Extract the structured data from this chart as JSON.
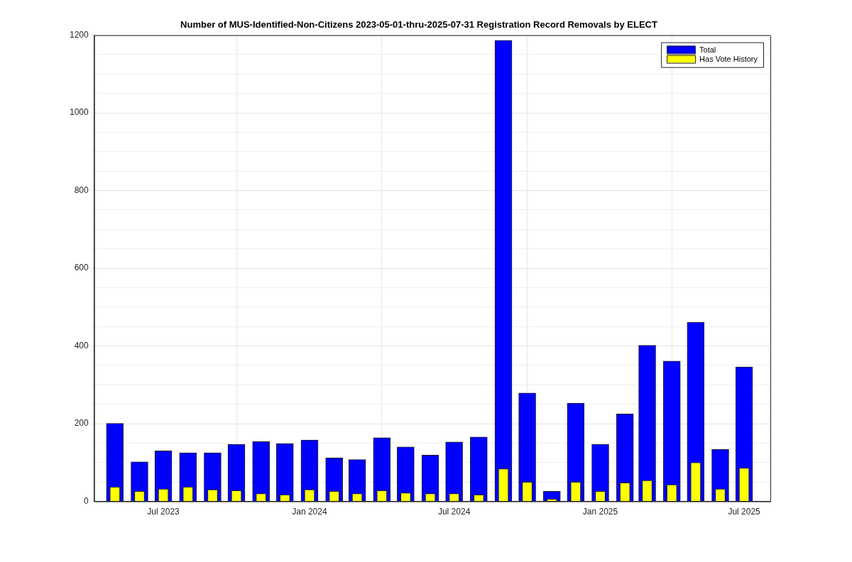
{
  "chart_data": {
    "type": "bar",
    "title": "Number of MUS-Identified-Non-Citizens 2023-05-01-thru-2025-07-31 Registration Record Removals by ELECT",
    "x": [
      "2023-05",
      "2023-06",
      "2023-07",
      "2023-08",
      "2023-09",
      "2023-10",
      "2023-11",
      "2023-12",
      "2024-01",
      "2024-02",
      "2024-03",
      "2024-04",
      "2024-05",
      "2024-06",
      "2024-07",
      "2024-08",
      "2024-09",
      "2024-10",
      "2024-11",
      "2024-12",
      "2025-01",
      "2025-02",
      "2025-03",
      "2025-04",
      "2025-05",
      "2025-06",
      "2025-07"
    ],
    "series": [
      {
        "name": "Total",
        "color": "#0000ff",
        "values": [
          201,
          102,
          130,
          125,
          125,
          147,
          154,
          149,
          158,
          112,
          108,
          164,
          140,
          119,
          153,
          166,
          1187,
          279,
          26,
          253,
          147,
          225,
          402,
          361,
          461,
          134,
          346
        ]
      },
      {
        "name": "Has Vote History",
        "color": "#ffff00",
        "values": [
          37,
          26,
          32,
          37,
          30,
          28,
          20,
          17,
          30,
          26,
          20,
          28,
          22,
          20,
          20,
          17,
          84,
          50,
          6,
          50,
          26,
          48,
          54,
          43,
          100,
          32,
          86
        ]
      }
    ],
    "xlim": [
      "2023-04-05",
      "2025-08-03"
    ],
    "xticks": [
      {
        "value": "2023-07",
        "label": "Jul 2023"
      },
      {
        "value": "2024-01",
        "label": "Jan 2024"
      },
      {
        "value": "2024-07",
        "label": "Jul 2024"
      },
      {
        "value": "2025-01",
        "label": "Jan 2025"
      },
      {
        "value": "2025-07",
        "label": "Jul 2025"
      }
    ],
    "ylim": [
      0,
      1200
    ],
    "yticks": [
      0,
      {
        "value": 50,
        "label": null
      },
      200,
      {
        "value": 100,
        "label": null
      },
      {
        "value": 150,
        "label": null
      },
      {
        "value": 250,
        "label": null
      },
      {
        "value": 300,
        "label": null
      },
      {
        "value": 350,
        "label": null
      },
      400,
      {
        "value": 450,
        "label": null
      },
      {
        "value": 500,
        "label": null
      },
      {
        "value": 550,
        "label": null
      },
      600,
      {
        "value": 650,
        "label": null
      },
      {
        "value": 700,
        "label": null
      },
      {
        "value": 750,
        "label": null
      },
      800,
      {
        "value": 850,
        "label": null
      },
      {
        "value": 900,
        "label": null
      },
      {
        "value": 950,
        "label": null
      },
      1000,
      {
        "value": 1050,
        "label": null
      },
      {
        "value": 1100,
        "label": null
      },
      {
        "value": 1150,
        "label": null
      },
      1200
    ],
    "grid": true,
    "legend": "top right"
  }
}
